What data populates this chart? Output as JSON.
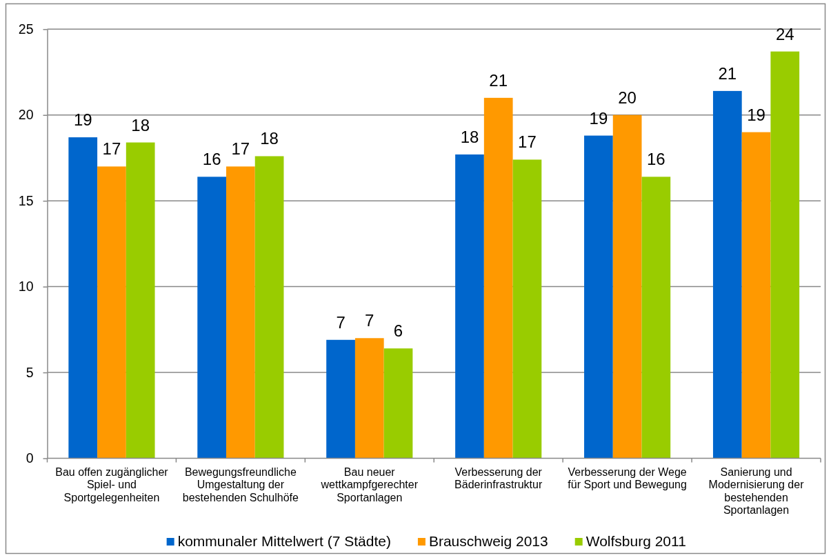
{
  "chart_data": {
    "type": "bar",
    "categories": [
      "Bau offen zugänglicher Spiel- und Sportgelegenheiten",
      "Bewegungsfreundliche Umgestaltung der bestehenden Schulhöfe",
      "Bau neuer wettkampfgerechter Sportanlagen",
      "Verbesserung der Bäderinfrastruktur",
      "Verbesserung der Wege für Sport und Bewegung",
      "Sanierung und Modernisierung der bestehenden Sportanlagen"
    ],
    "series": [
      {
        "name": "kommunaler Mittelwert (7 Städte)",
        "color": "#0066cc",
        "values": [
          18.7,
          16.4,
          6.9,
          17.7,
          18.8,
          21.4
        ],
        "value_labels": [
          "19",
          "16",
          "7",
          "18",
          "19",
          "21"
        ]
      },
      {
        "name": "Brauschweig 2013",
        "color": "#ff9900",
        "values": [
          17.0,
          17.0,
          7.0,
          21.0,
          20.0,
          19.0
        ],
        "value_labels": [
          "17",
          "17",
          "7",
          "21",
          "20",
          "19"
        ]
      },
      {
        "name": "Wolfsburg 2011",
        "color": "#99cc00",
        "values": [
          18.4,
          17.6,
          6.4,
          17.4,
          16.4,
          23.7
        ],
        "value_labels": [
          "18",
          "18",
          "6",
          "17",
          "16",
          "24"
        ]
      }
    ],
    "ylim": [
      0,
      25
    ],
    "yticks": [
      0,
      5,
      10,
      15,
      20,
      25
    ],
    "grid": "y",
    "legend": "bottom"
  }
}
